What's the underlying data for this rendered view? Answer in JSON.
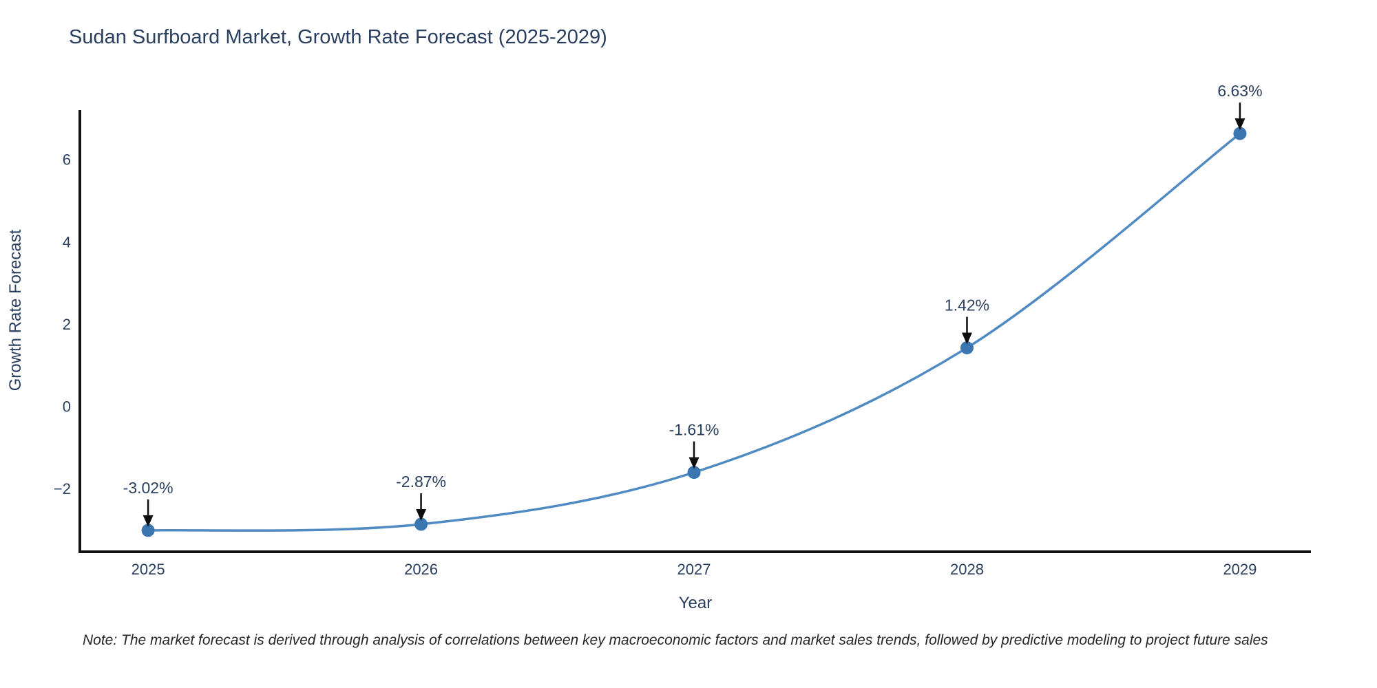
{
  "page": {
    "footnote": "Note: The market forecast is derived through analysis of correlations between key macroeconomic factors and market sales trends, followed by predictive modeling to project future sales"
  },
  "chart_data": {
    "type": "line",
    "title": "Sudan Surfboard Market, Growth Rate Forecast (2025-2029)",
    "xlabel": "Year",
    "ylabel": "Growth Rate Forecast",
    "x": [
      2025,
      2026,
      2027,
      2028,
      2029
    ],
    "y": [
      -3.02,
      -2.87,
      -1.61,
      1.42,
      6.63
    ],
    "point_labels": [
      "-3.02%",
      "-2.87%",
      "-1.61%",
      "1.42%",
      "6.63%"
    ],
    "xticks": [
      "2025",
      "2026",
      "2027",
      "2028",
      "2029"
    ],
    "yticks": [
      -2,
      0,
      2,
      4,
      6
    ],
    "xlim": [
      2024.75,
      2029.26
    ],
    "ylim": [
      -3.54,
      7.2
    ],
    "line_shape": "spline",
    "grid": false,
    "legend": false,
    "colors": {
      "line": "#4f8bc2",
      "marker": "#3c76b0",
      "axis": "#111111",
      "text": "#2a3f5f",
      "annotation_arrow": "#0d0d0d"
    }
  }
}
